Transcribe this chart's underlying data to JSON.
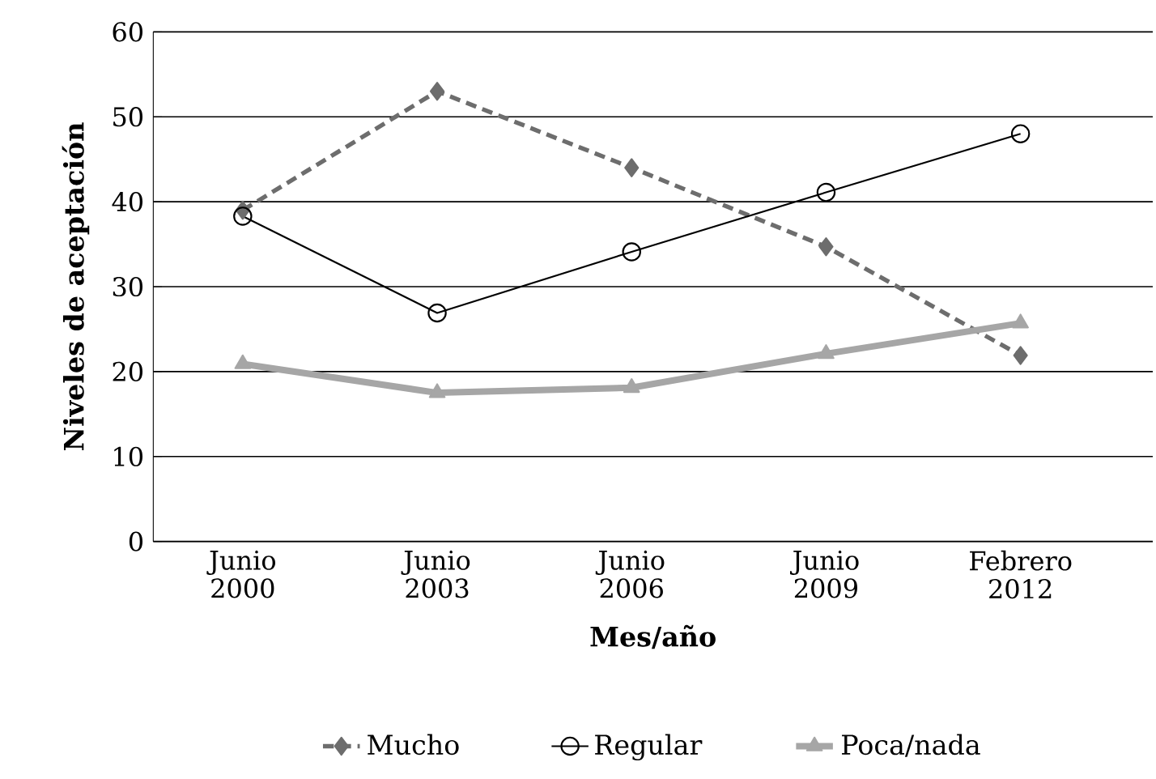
{
  "chart_data": {
    "type": "line",
    "xlabel": "**Mes/año**",
    "ylabel": "**Niveles de aceptación**",
    "categories": [
      "Junio 2000",
      "Junio 2003",
      "Junio 2006",
      "Junio 2009",
      "Febrero 2012"
    ],
    "series": [
      {
        "name": "Mucho",
        "color": "#6d6d6d",
        "marker": "diamond",
        "line_style": "dashed",
        "values": [
          39,
          53,
          44,
          34.7,
          21.9
        ]
      },
      {
        "name": "Regular",
        "color": "#000000",
        "marker": "circle",
        "line_style": "solid",
        "values": [
          38.3,
          26.9,
          34.1,
          41.1,
          48
        ]
      },
      {
        "name": "Poca/nada",
        "color": "#a6a6a6",
        "marker": "triangle",
        "line_style": "solid",
        "values": [
          20.9,
          17.5,
          18.1,
          22.1,
          25.7
        ]
      }
    ],
    "ylim": [
      0,
      60
    ],
    "yticks": [
      0,
      10,
      20,
      30,
      40,
      50,
      60
    ],
    "grid": "y",
    "legend": "bottom"
  }
}
